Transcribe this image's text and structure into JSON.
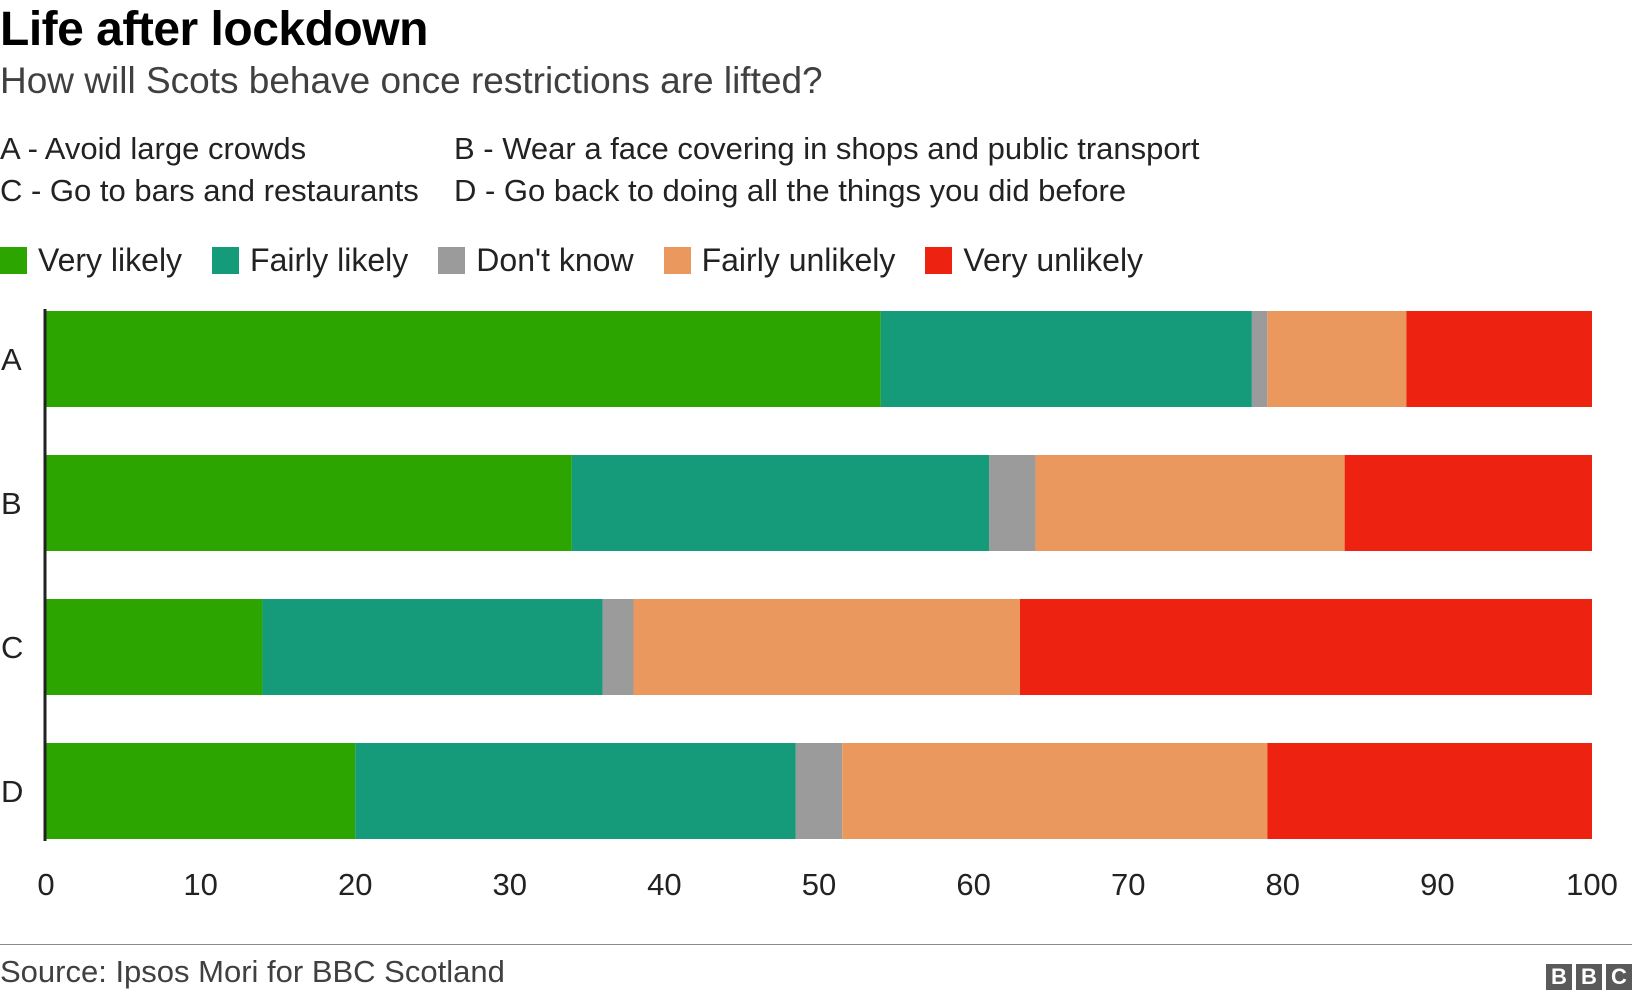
{
  "header": {
    "title": "Life after lockdown",
    "subtitle": "How will Scots behave once restrictions are lifted?"
  },
  "key": [
    "A - Avoid large crowds",
    "B - Wear a face covering in shops and public transport",
    "C - Go to bars and restaurants",
    "D - Go back to doing all the things you did before"
  ],
  "legend": [
    {
      "label": "Very likely",
      "color": "#2ca500"
    },
    {
      "label": "Fairly likely",
      "color": "#169b7a"
    },
    {
      "label": "Don't know",
      "color": "#9b9b9b"
    },
    {
      "label": "Fairly unlikely",
      "color": "#eb985f"
    },
    {
      "label": "Very unlikely",
      "color": "#ee2211"
    }
  ],
  "chart_data": {
    "type": "bar",
    "orientation": "horizontal",
    "stacked": true,
    "categories": [
      "A",
      "B",
      "C",
      "D"
    ],
    "series": [
      {
        "name": "Very likely",
        "color": "#2ca500",
        "values": [
          54,
          34,
          14,
          20
        ]
      },
      {
        "name": "Fairly likely",
        "color": "#169b7a",
        "values": [
          24,
          27,
          22,
          28.5
        ]
      },
      {
        "name": "Don't know",
        "color": "#9b9b9b",
        "values": [
          1,
          3,
          2,
          3
        ]
      },
      {
        "name": "Fairly unlikely",
        "color": "#eb985f",
        "values": [
          9,
          20,
          25,
          27.5
        ]
      },
      {
        "name": "Very unlikely",
        "color": "#ee2211",
        "values": [
          12,
          16,
          37,
          21
        ]
      }
    ],
    "xlim": [
      0,
      100
    ],
    "xticks": [
      0,
      10,
      20,
      30,
      40,
      50,
      60,
      70,
      80,
      90,
      100
    ],
    "grid": false
  },
  "footer": {
    "source": "Source: Ipsos Mori for BBC Scotland",
    "logo_letters": [
      "B",
      "B",
      "C"
    ]
  }
}
